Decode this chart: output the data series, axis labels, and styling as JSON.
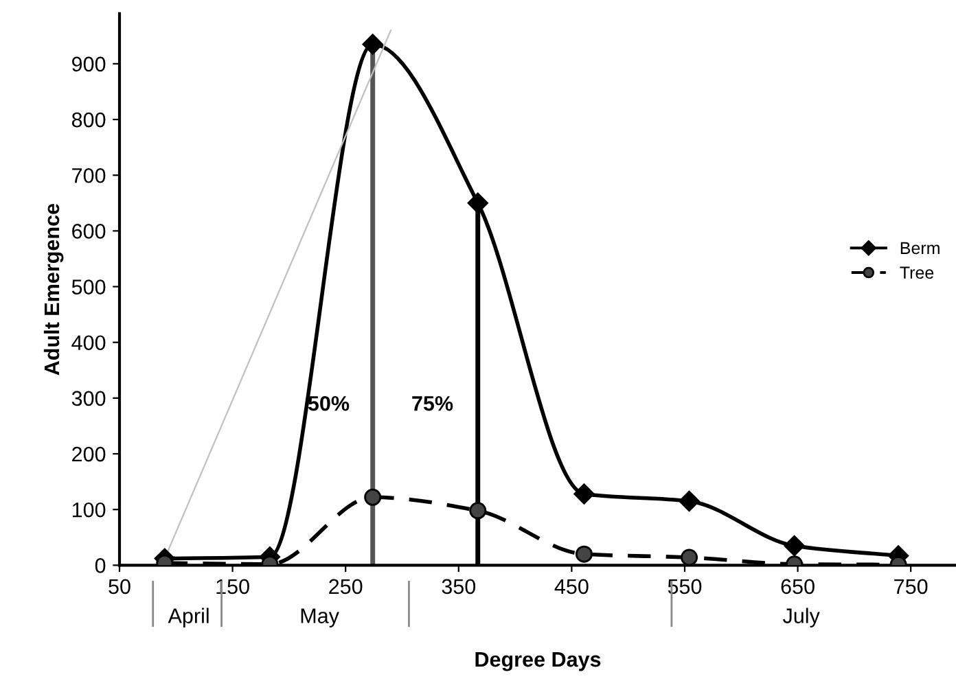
{
  "chart_data": {
    "type": "line",
    "xlabel": "Degree Days",
    "ylabel": "Adult Emergence",
    "xlim": [
      50,
      790
    ],
    "xticks": [
      50,
      150,
      250,
      350,
      450,
      550,
      650,
      750
    ],
    "ylim": [
      0,
      990
    ],
    "yticks": [
      0,
      100,
      200,
      300,
      400,
      500,
      600,
      700,
      800,
      900
    ],
    "annotations": [
      "50%",
      "75%",
      "April",
      "May",
      "July"
    ],
    "series": [
      {
        "name": "Berm",
        "color": "#000000",
        "marker": "diamond",
        "line_style": "solid",
        "x": [
          90,
          183,
          274,
          367,
          461,
          554,
          647,
          739
        ],
        "values": [
          12,
          15,
          935,
          650,
          128,
          115,
          35,
          17
        ]
      },
      {
        "name": "Tree",
        "color": "#000000",
        "marker": "circle",
        "line_style": "dashed",
        "x": [
          90,
          183,
          274,
          367,
          461,
          554,
          647,
          739
        ],
        "values": [
          4,
          2,
          122,
          98,
          20,
          14,
          2,
          1
        ]
      },
      {
        "color": "#c0c0c0",
        "marker": "none",
        "line_style": "solid",
        "x": [
          90,
          290
        ],
        "values": [
          12,
          960
        ]
      }
    ],
    "ref_lines": [
      {
        "axis": "x",
        "value": 274,
        "color": "#555555"
      },
      {
        "axis": "x",
        "value": 367,
        "color": "#000000"
      }
    ],
    "grid": false,
    "legend": "right"
  }
}
